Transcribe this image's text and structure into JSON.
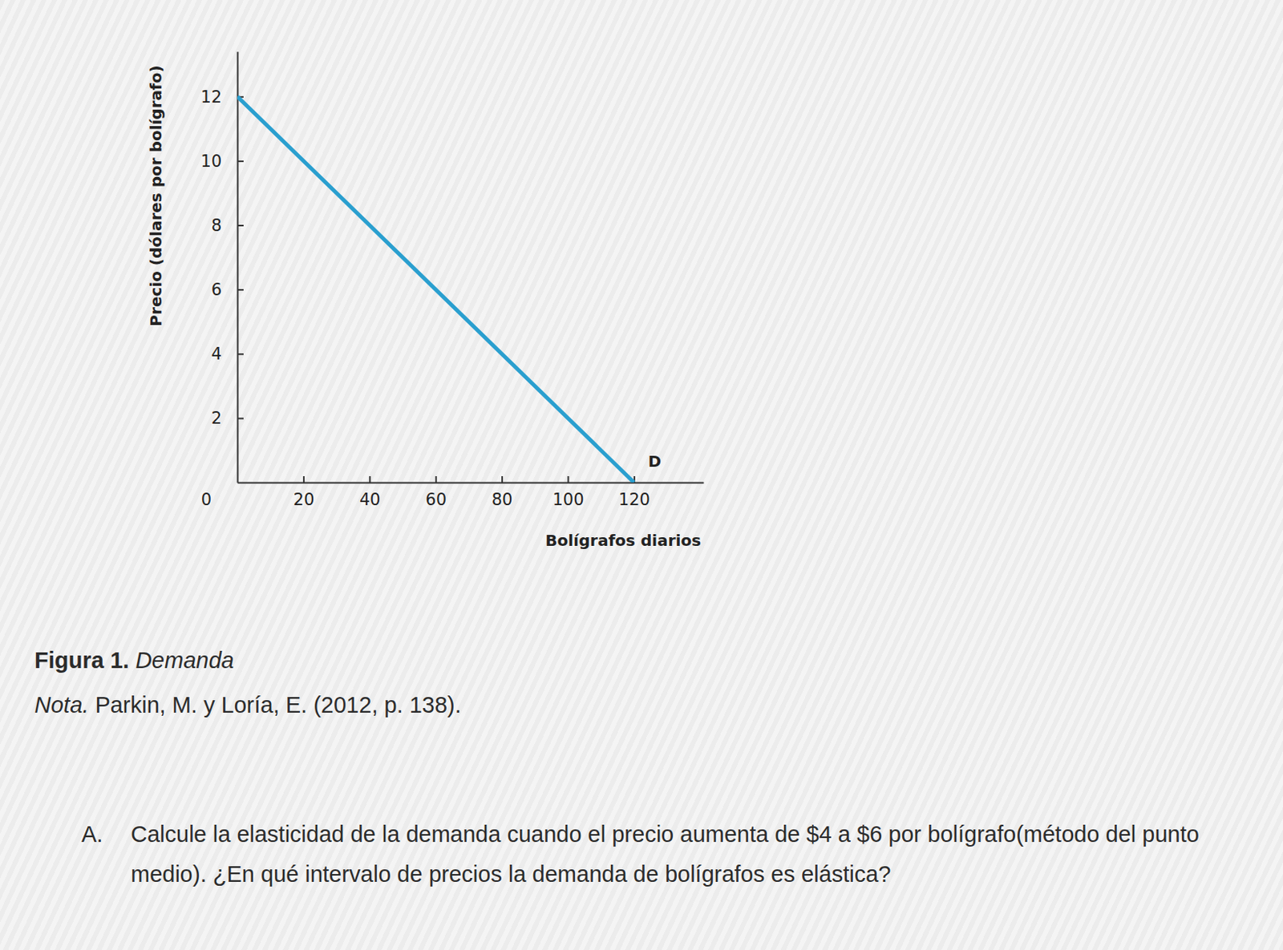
{
  "chart_data": {
    "type": "line",
    "x_label": "Bolígrafos diarios",
    "y_label": "Precio (dólares por bolígrafo)",
    "x": [
      0,
      120
    ],
    "series": [
      {
        "name": "D",
        "color": "#2a9fcf",
        "values": [
          12,
          0
        ]
      }
    ],
    "xlim": [
      0,
      141
    ],
    "ylim": [
      0,
      13.4
    ],
    "xticks": [
      0,
      20,
      40,
      60,
      80,
      100,
      120
    ],
    "yticks": [
      2,
      4,
      6,
      8,
      10,
      12
    ]
  },
  "figure_label": "Figura 1.",
  "figure_title": "Demanda",
  "note_label": "Nota.",
  "note_text": "Parkin, M. y Loría, E. (2012, p. 138).",
  "question": {
    "letter": "A.",
    "text": "Calcule la elasticidad de la demanda cuando el precio aumenta de $4 a $6 por bolígrafo(método del punto medio). ¿En qué intervalo de precios la demanda de bolígrafos es elástica?"
  }
}
